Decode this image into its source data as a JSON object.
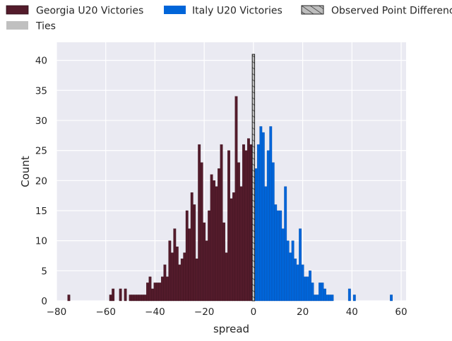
{
  "chart_data": {
    "type": "bar",
    "xlabel": "spread",
    "ylabel": "Count",
    "xlim": [
      -80,
      62
    ],
    "ylim": [
      0,
      43
    ],
    "x_ticks": [
      -80,
      -60,
      -40,
      -20,
      0,
      20,
      40,
      60
    ],
    "y_ticks": [
      0,
      5,
      10,
      15,
      20,
      25,
      30,
      35,
      40
    ],
    "grid": true,
    "legend_position": "top",
    "bin_width": 1,
    "series": [
      {
        "name": "Georgia U20 Victories",
        "color": "#531b2b",
        "x": [
          -75,
          -58,
          -57,
          -54,
          -52,
          -50,
          -49,
          -48,
          -47,
          -46,
          -45,
          -44,
          -43,
          -42,
          -41,
          -40,
          -39,
          -38,
          -37,
          -36,
          -35,
          -34,
          -33,
          -32,
          -31,
          -30,
          -29,
          -28,
          -27,
          -26,
          -25,
          -24,
          -23,
          -22,
          -21,
          -20,
          -19,
          -18,
          -17,
          -16,
          -15,
          -14,
          -13,
          -12,
          -11,
          -10,
          -9,
          -8,
          -7,
          -6,
          -5,
          -4,
          -3,
          -2,
          -1
        ],
        "values": [
          1,
          1,
          2,
          2,
          2,
          1,
          1,
          1,
          1,
          1,
          1,
          1,
          3,
          4,
          2,
          3,
          3,
          3,
          4,
          6,
          4,
          10,
          8,
          12,
          9,
          6,
          7,
          8,
          15,
          12,
          18,
          16,
          7,
          26,
          23,
          13,
          10,
          15,
          21,
          20,
          19,
          22,
          26,
          13,
          8,
          25,
          17,
          18,
          34,
          23,
          19,
          26,
          25,
          27,
          26
        ]
      },
      {
        "name": "Ties",
        "color": "#c0c0c0",
        "x": [
          0
        ],
        "values": [
          41
        ]
      },
      {
        "name": "Italy U20 Victories",
        "color": "#0065d9",
        "x": [
          1,
          2,
          3,
          4,
          5,
          6,
          7,
          8,
          9,
          10,
          11,
          12,
          13,
          14,
          15,
          16,
          17,
          18,
          19,
          20,
          21,
          22,
          23,
          24,
          25,
          26,
          27,
          28,
          29,
          30,
          31,
          32,
          39,
          41,
          56
        ],
        "values": [
          22,
          26,
          29,
          28,
          19,
          25,
          29,
          23,
          16,
          15,
          15,
          12,
          19,
          10,
          8,
          10,
          7,
          6,
          12,
          6,
          4,
          4,
          5,
          3,
          1,
          1,
          3,
          3,
          2,
          1,
          1,
          1,
          2,
          1,
          1
        ]
      },
      {
        "name": "Observed Point Difference",
        "color": "#c0c0c0",
        "pattern": "hatch",
        "x": [
          0
        ],
        "values": [
          41
        ]
      }
    ]
  }
}
